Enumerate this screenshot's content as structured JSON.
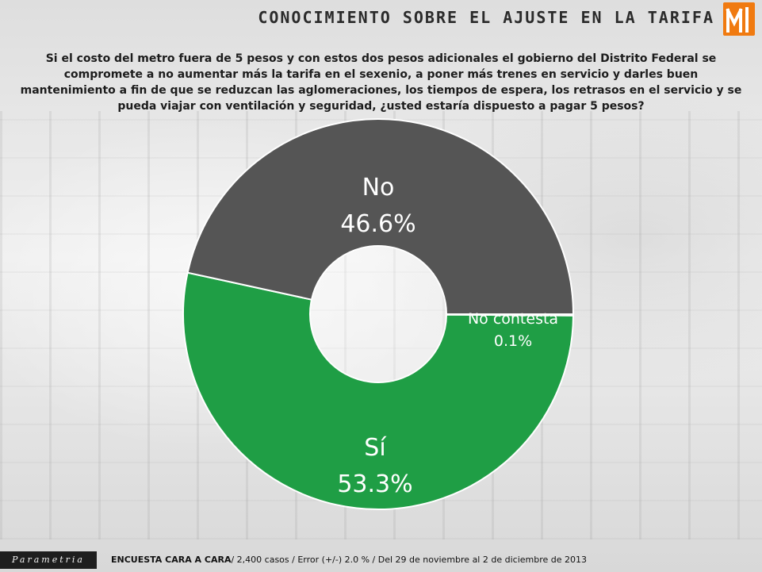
{
  "header": {
    "title": "Conocimiento sobre el ajuste en la tarifa"
  },
  "question": "Si el costo del metro fuera de 5 pesos y con estos dos pesos adicionales el gobierno del Distrito Federal se compromete a no aumentar más la tarifa en el sexenio, a poner más trenes en servicio y darles buen mantenimiento a fin de que  se reduzcan las aglomeraciones, los tiempos de espera, los retrasos en el servicio y se pueda viajar con ventilación y seguridad, ¿usted estaría dispuesto a pagar 5 pesos?",
  "chart_data": {
    "type": "pie",
    "donut": true,
    "slices": [
      {
        "label": "No",
        "value": 46.6,
        "display": "46.6%",
        "color": "#555555"
      },
      {
        "label": "No contesta",
        "value": 0.1,
        "display": "0.1%",
        "color": "#6b6b6b"
      },
      {
        "label": "Sí",
        "value": 53.3,
        "display": "53.3%",
        "color": "#1f9e45"
      }
    ]
  },
  "footer": {
    "brand": "Parametria",
    "source_bold": "ENCUESTA CARA A CARA",
    "source_rest": "/ 2,400 casos / Error (+/-) 2.0 % / Del 29 de noviembre al 2 de diciembre de 2013"
  }
}
